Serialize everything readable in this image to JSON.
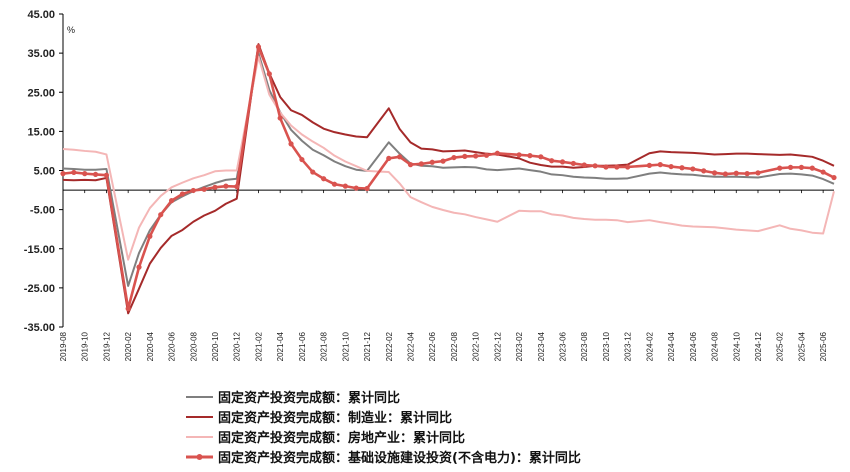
{
  "chart_data": {
    "type": "line",
    "unit_label": "%",
    "ylim": [
      -35,
      45
    ],
    "yticks": [
      "45.00",
      "35.00",
      "25.00",
      "15.00",
      "5.00",
      "-5.00",
      "-15.00",
      "-25.00",
      "-35.00"
    ],
    "x": [
      "2019-08",
      "2019-09",
      "2019-10",
      "2019-11",
      "2019-12",
      "2020-01",
      "2020-02",
      "2020-03",
      "2020-04",
      "2020-05",
      "2020-06",
      "2020-07",
      "2020-08",
      "2020-09",
      "2020-10",
      "2020-11",
      "2020-12",
      "2021-01",
      "2021-02",
      "2021-03",
      "2021-04",
      "2021-05",
      "2021-06",
      "2021-07",
      "2021-08",
      "2021-09",
      "2021-10",
      "2021-11",
      "2021-12",
      "2022-01",
      "2022-02",
      "2022-03",
      "2022-04",
      "2022-05",
      "2022-06",
      "2022-07",
      "2022-08",
      "2022-09",
      "2022-10",
      "2022-11",
      "2022-12",
      "2023-01",
      "2023-02",
      "2023-03",
      "2023-04",
      "2023-05",
      "2023-06",
      "2023-07",
      "2023-08",
      "2023-09",
      "2023-10",
      "2023-11",
      "2023-12",
      "2024-01",
      "2024-02",
      "2024-03",
      "2024-04",
      "2024-05",
      "2024-06",
      "2024-07",
      "2024-08",
      "2024-09",
      "2024-10",
      "2024-11",
      "2024-12",
      "2025-01",
      "2025-02",
      "2025-03",
      "2025-04",
      "2025-05",
      "2025-06",
      "2025-07"
    ],
    "xtick_labels": [
      "2019-08",
      "2019-10",
      "2019-12",
      "2020-02",
      "2020-04",
      "2020-06",
      "2020-08",
      "2020-10",
      "2020-12",
      "2021-02",
      "2021-04",
      "2021-06",
      "2021-08",
      "2021-10",
      "2021-12",
      "2022-02",
      "2022-04",
      "2022-06",
      "2022-08",
      "2022-10",
      "2022-12",
      "2023-02",
      "2023-04",
      "2023-06",
      "2023-08",
      "2023-10",
      "2023-12",
      "2024-02",
      "2024-04",
      "2024-06",
      "2024-08",
      "2024-10",
      "2024-12",
      "2025-02",
      "2025-04",
      "2025-06"
    ],
    "series": [
      {
        "name": "固定资产投资完成额：累计同比",
        "color": "#7f7f7f",
        "markers": false,
        "values": [
          5.5,
          5.4,
          5.2,
          5.2,
          5.4,
          null,
          -24.5,
          -16.1,
          -10.3,
          -6.3,
          -3.1,
          -1.6,
          -0.3,
          0.8,
          1.8,
          2.6,
          2.9,
          null,
          35.0,
          25.6,
          19.9,
          15.4,
          12.6,
          10.3,
          8.9,
          7.3,
          6.1,
          5.2,
          4.9,
          null,
          12.2,
          9.3,
          6.8,
          6.2,
          6.1,
          5.7,
          5.8,
          5.9,
          5.8,
          5.3,
          5.1,
          null,
          5.5,
          5.1,
          4.7,
          4.0,
          3.8,
          3.4,
          3.2,
          3.1,
          2.9,
          2.9,
          3.0,
          null,
          4.2,
          4.5,
          4.2,
          4.0,
          3.9,
          3.6,
          3.4,
          3.4,
          3.4,
          3.3,
          3.2,
          null,
          4.1,
          4.2,
          4.0,
          3.7,
          2.8,
          1.6
        ]
      },
      {
        "name": "固定资产投资完成额：制造业：累计同比",
        "color": "#a52a2a",
        "markers": false,
        "values": [
          2.6,
          2.5,
          2.6,
          2.5,
          3.1,
          null,
          -31.5,
          -25.2,
          -18.8,
          -14.8,
          -11.7,
          -10.2,
          -8.1,
          -6.5,
          -5.3,
          -3.5,
          -2.2,
          null,
          37.3,
          29.8,
          23.8,
          20.4,
          19.2,
          17.3,
          15.7,
          14.8,
          14.2,
          13.7,
          13.5,
          null,
          20.9,
          15.6,
          12.2,
          10.6,
          10.4,
          9.9,
          10.0,
          10.1,
          9.7,
          9.3,
          9.1,
          null,
          8.1,
          7.0,
          6.4,
          6.0,
          6.0,
          5.7,
          5.9,
          6.2,
          6.2,
          6.3,
          6.5,
          null,
          9.4,
          9.9,
          9.7,
          9.6,
          9.5,
          9.3,
          9.1,
          9.2,
          9.3,
          9.3,
          9.2,
          null,
          9.0,
          9.1,
          8.8,
          8.5,
          7.5,
          6.2
        ]
      },
      {
        "name": "固定资产投资完成额：房地产业：累计同比",
        "color": "#f4b6b6",
        "markers": false,
        "values": [
          10.5,
          10.3,
          10.0,
          9.8,
          9.1,
          null,
          -17.8,
          -9.6,
          -4.6,
          -1.5,
          0.7,
          1.9,
          3.0,
          3.8,
          4.8,
          5.0,
          5.0,
          null,
          34.1,
          24.4,
          19.8,
          16.5,
          14.2,
          12.4,
          10.8,
          8.8,
          7.3,
          6.1,
          4.9,
          null,
          4.6,
          1.7,
          -1.8,
          -3.1,
          -4.3,
          -5.1,
          -5.8,
          -6.2,
          -6.9,
          -7.5,
          -8.1,
          null,
          -5.3,
          -5.4,
          -5.4,
          -6.2,
          -6.5,
          -7.1,
          -7.4,
          -7.6,
          -7.6,
          -7.7,
          -8.2,
          null,
          -7.7,
          -8.2,
          -8.6,
          -9.1,
          -9.3,
          -9.4,
          -9.5,
          -9.8,
          -10.1,
          -10.3,
          -10.5,
          null,
          -9.0,
          -9.9,
          -10.3,
          -10.9,
          -11.1,
          -0.3
        ]
      },
      {
        "name": "固定资产投资完成额：基础设施建设投资(不含电力)：累计同比",
        "color": "#d9534f",
        "markers": true,
        "values": [
          4.2,
          4.5,
          4.2,
          4.0,
          3.8,
          null,
          -30.3,
          -19.7,
          -11.8,
          -6.3,
          -2.7,
          -1.0,
          -0.1,
          0.2,
          0.7,
          1.0,
          0.9,
          null,
          36.6,
          29.7,
          18.4,
          11.8,
          7.8,
          4.6,
          2.9,
          1.5,
          1.0,
          0.5,
          0.4,
          null,
          8.1,
          8.5,
          6.5,
          6.7,
          7.1,
          7.4,
          8.3,
          8.6,
          8.7,
          8.9,
          9.4,
          null,
          9.0,
          8.8,
          8.5,
          7.5,
          7.2,
          6.8,
          6.4,
          6.2,
          5.9,
          5.9,
          5.9,
          null,
          6.3,
          6.5,
          6.0,
          5.7,
          5.4,
          4.9,
          4.4,
          4.1,
          4.3,
          4.2,
          4.4,
          null,
          5.6,
          5.8,
          5.8,
          5.6,
          4.6,
          3.2
        ]
      }
    ]
  }
}
